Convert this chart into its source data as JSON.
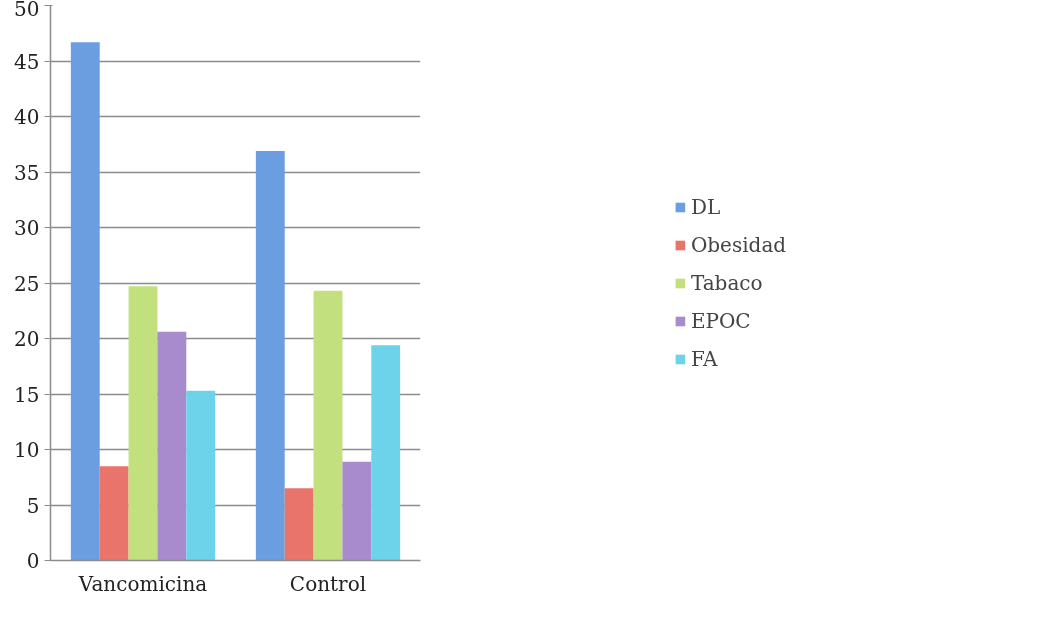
{
  "chart_data": {
    "type": "bar",
    "categories": [
      "Vancomicina",
      "Control"
    ],
    "series": [
      {
        "name": "DL",
        "color": "#6a9ee0",
        "values": [
          46.7,
          36.9
        ]
      },
      {
        "name": "Obesidad",
        "color": "#e8746c",
        "values": [
          8.5,
          6.5
        ]
      },
      {
        "name": "Tabaco",
        "color": "#c3e07e",
        "values": [
          24.7,
          24.3
        ]
      },
      {
        "name": "EPOC",
        "color": "#a88bcc",
        "values": [
          20.6,
          8.9
        ]
      },
      {
        "name": "FA",
        "color": "#6dd3ea",
        "values": [
          15.3,
          19.4
        ]
      }
    ],
    "ylim": [
      0,
      50
    ],
    "yticks": [
      0,
      5,
      10,
      15,
      20,
      25,
      30,
      35,
      40,
      45,
      50
    ],
    "grid": "y",
    "legend": "right"
  }
}
